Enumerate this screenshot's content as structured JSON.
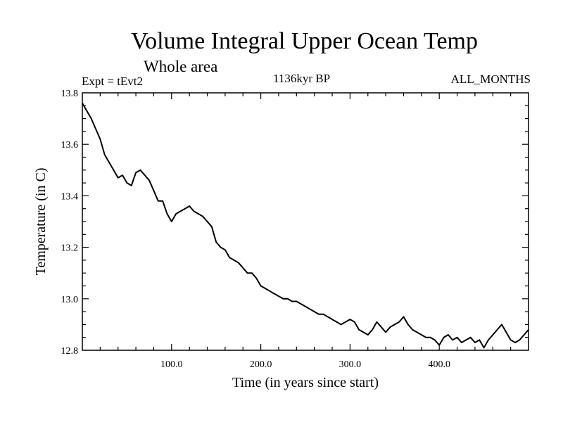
{
  "header": {
    "title": "Volume Integral Upper Ocean Temp",
    "subtitle": "Whole area",
    "experiment": "Expt = tEvt2",
    "period": "1136kyr BP",
    "months": "ALL_MONTHS"
  },
  "chart_data": {
    "type": "line",
    "title": "Volume Integral Upper Ocean Temp",
    "xlabel": "Time (in years since start)",
    "ylabel": "Temperature (in C)",
    "xlim": [
      0,
      500
    ],
    "ylim": [
      12.8,
      13.8
    ],
    "xticks": [
      100,
      200,
      300,
      400
    ],
    "xtick_labels": [
      "100.0",
      "200.0",
      "300.0",
      "400.0"
    ],
    "yticks": [
      12.8,
      13.0,
      13.2,
      13.4,
      13.6,
      13.8
    ],
    "ytick_labels": [
      "12.8",
      "13.0",
      "13.2",
      "13.4",
      "13.6",
      "13.8"
    ],
    "grid": false,
    "series": [
      {
        "name": "Volume integral upper ocean temperature",
        "x": [
          0,
          5,
          10,
          15,
          20,
          25,
          30,
          35,
          40,
          45,
          50,
          55,
          60,
          65,
          70,
          75,
          80,
          85,
          90,
          95,
          100,
          105,
          110,
          115,
          120,
          125,
          130,
          135,
          140,
          145,
          150,
          155,
          160,
          165,
          170,
          175,
          180,
          185,
          190,
          195,
          200,
          205,
          210,
          215,
          220,
          225,
          230,
          235,
          240,
          245,
          250,
          255,
          260,
          265,
          270,
          275,
          280,
          285,
          290,
          295,
          300,
          305,
          310,
          315,
          320,
          325,
          330,
          335,
          340,
          345,
          350,
          355,
          360,
          365,
          370,
          375,
          380,
          385,
          390,
          395,
          400,
          405,
          410,
          415,
          420,
          425,
          430,
          435,
          440,
          445,
          450,
          455,
          460,
          465,
          470,
          475,
          480,
          485,
          490,
          495,
          500
        ],
        "y": [
          13.76,
          13.73,
          13.7,
          13.66,
          13.62,
          13.56,
          13.53,
          13.5,
          13.47,
          13.48,
          13.45,
          13.44,
          13.49,
          13.5,
          13.48,
          13.46,
          13.42,
          13.38,
          13.38,
          13.33,
          13.3,
          13.33,
          13.34,
          13.35,
          13.36,
          13.34,
          13.33,
          13.32,
          13.3,
          13.28,
          13.22,
          13.2,
          13.19,
          13.16,
          13.15,
          13.14,
          13.12,
          13.1,
          13.1,
          13.08,
          13.05,
          13.04,
          13.03,
          13.02,
          13.01,
          13.0,
          13.0,
          12.99,
          12.99,
          12.98,
          12.97,
          12.96,
          12.95,
          12.94,
          12.94,
          12.93,
          12.92,
          12.91,
          12.9,
          12.91,
          12.92,
          12.91,
          12.88,
          12.87,
          12.86,
          12.88,
          12.91,
          12.89,
          12.87,
          12.89,
          12.9,
          12.91,
          12.93,
          12.9,
          12.88,
          12.87,
          12.86,
          12.85,
          12.85,
          12.84,
          12.82,
          12.85,
          12.86,
          12.84,
          12.85,
          12.83,
          12.84,
          12.85,
          12.83,
          12.84,
          12.81,
          12.84,
          12.86,
          12.88,
          12.9,
          12.87,
          12.84,
          12.83,
          12.84,
          12.86,
          12.88
        ]
      }
    ]
  }
}
